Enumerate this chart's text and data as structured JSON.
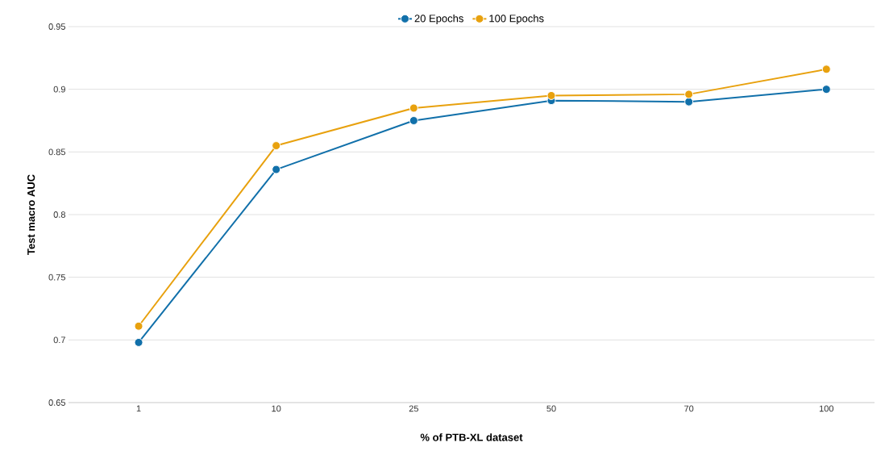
{
  "chart_data": {
    "type": "line",
    "xlabel": "% of PTB-XL dataset",
    "ylabel": "Test macro AUC",
    "categories": [
      "1",
      "10",
      "25",
      "50",
      "70",
      "100"
    ],
    "series": [
      {
        "name": "20 Epochs",
        "color": "#1170aa",
        "values": [
          0.698,
          0.836,
          0.875,
          0.891,
          0.89,
          0.9
        ]
      },
      {
        "name": "100 Epochs",
        "color": "#e8a10e",
        "values": [
          0.711,
          0.855,
          0.885,
          0.895,
          0.896,
          0.916
        ]
      }
    ],
    "ylim": [
      0.65,
      0.95
    ],
    "yticks": [
      0.65,
      0.7,
      0.75,
      0.8,
      0.85,
      0.9,
      0.95
    ],
    "grid": "y",
    "legend": "top",
    "marker": "circle",
    "line_style": "solid"
  }
}
